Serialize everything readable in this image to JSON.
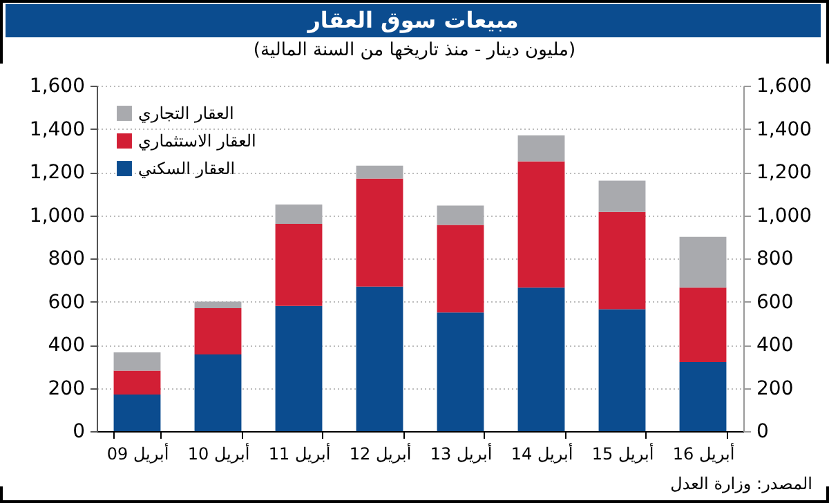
{
  "chart_data": {
    "type": "bar",
    "title": "مبيعات سوق العقار",
    "subtitle": "(مليون دينار - منذ تاريخها من السنة المالية)",
    "categories": [
      "أبريل 09",
      "أبريل 10",
      "أبريل 11",
      "أبريل 12",
      "أبريل 13",
      "أبريل 14",
      "أبريل 15",
      "أبريل 16"
    ],
    "stacked": true,
    "series": [
      {
        "name": "العقار السكني",
        "color": "#0b4c8f",
        "values": [
          170,
          355,
          580,
          670,
          550,
          665,
          565,
          320
        ]
      },
      {
        "name": "العقار الاستثماري",
        "color": "#d21f35",
        "values": [
          110,
          215,
          380,
          500,
          405,
          585,
          450,
          345
        ]
      },
      {
        "name": "العقار التجاري",
        "color": "#a9aaae",
        "values": [
          85,
          30,
          90,
          60,
          90,
          120,
          145,
          235
        ]
      }
    ],
    "ylim": [
      0,
      1600
    ],
    "yticks": [
      0,
      {
        "value": 200,
        "label": "200"
      },
      {
        "value": 400,
        "label": "400"
      },
      {
        "value": 600,
        "label": "600"
      },
      {
        "value": 800,
        "label": "800"
      },
      {
        "value": 1000,
        "label": "1,000"
      },
      {
        "value": 1200,
        "label": "1,200"
      },
      {
        "value": 1400,
        "label": "1,400"
      },
      {
        "value": 1600,
        "label": "1,600"
      }
    ],
    "y2lim": [
      0,
      1600
    ],
    "y2ticks": [
      0,
      {
        "value": 200,
        "label": "200"
      },
      {
        "value": 400,
        "label": "400"
      },
      {
        "value": 600,
        "label": "600"
      },
      {
        "value": 800,
        "label": "800"
      },
      {
        "value": 1000,
        "label": "1,000"
      },
      {
        "value": 1200,
        "label": "1,200"
      },
      {
        "value": 1400,
        "label": "1,400"
      },
      {
        "value": 1600,
        "label": "1,600"
      }
    ],
    "grid": "y",
    "legend": "top left",
    "annotations": [
      "المصدر: وزارة العدل"
    ]
  }
}
